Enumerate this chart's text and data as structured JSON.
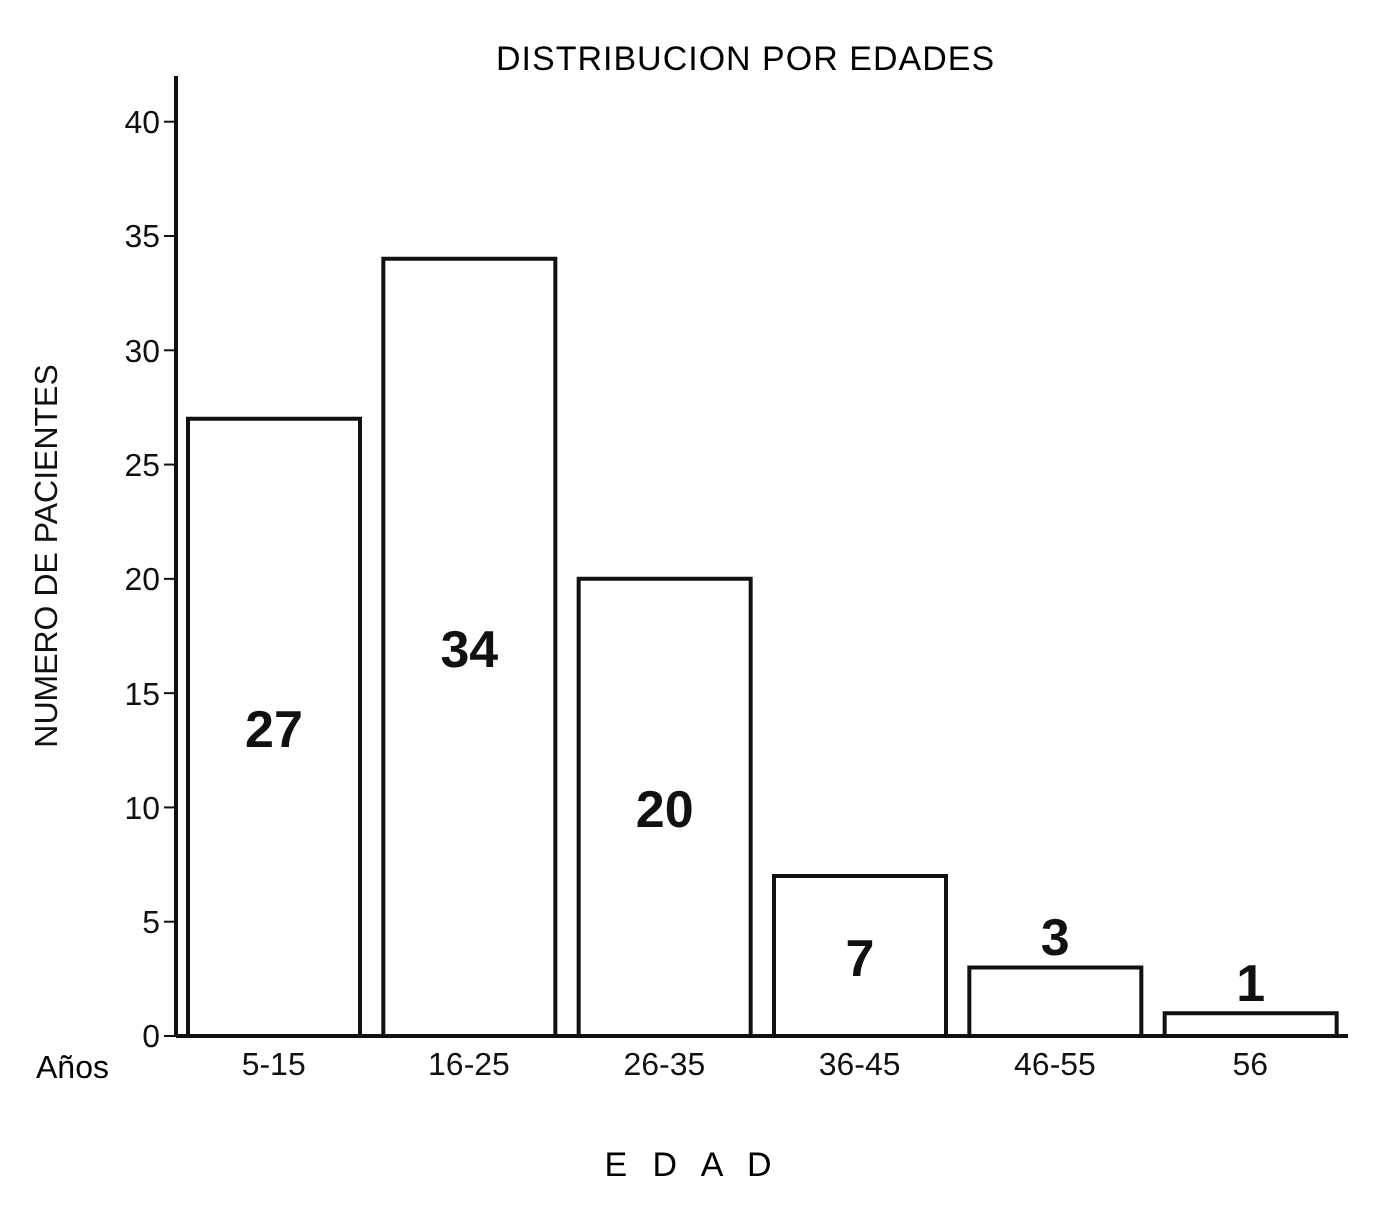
{
  "chart_data": {
    "type": "bar",
    "title": "DISTRIBUCION POR EDADES",
    "xlabel": "E D A D",
    "ylabel": "NUMERO DE PACIENTES",
    "annotations": [
      "Años"
    ],
    "categories": [
      "5-15",
      "16-25",
      "26-35",
      "36-45",
      "46-55",
      "56"
    ],
    "values": [
      27,
      34,
      20,
      7,
      3,
      1
    ],
    "color": "#ffffff",
    "ylim": [
      0,
      42
    ],
    "yticks": [
      0,
      5,
      10,
      15,
      20,
      25,
      30,
      35,
      40
    ],
    "grid": false,
    "data_labels": true
  }
}
